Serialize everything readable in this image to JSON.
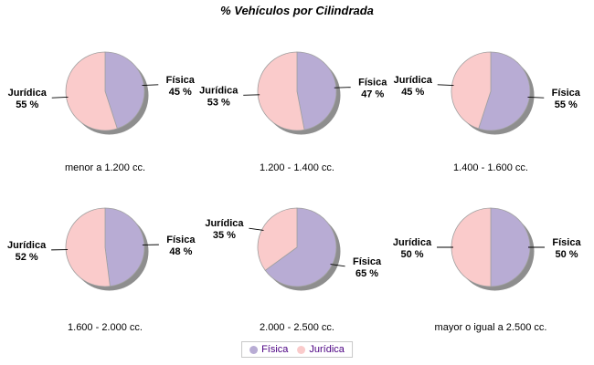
{
  "title": "% Vehículos por Cilindrada",
  "colors": {
    "background": "#FFFFFF",
    "shadow": "#8E8E8E",
    "outline": "#A0A0A0",
    "label_text": "#000000",
    "legend_text": "#4B0082",
    "legend_border": "#C8C8C8"
  },
  "chart_data": {
    "type": "pie",
    "title": "% Vehículos por Cilindrada",
    "legend_position": "bottom",
    "unit": "%",
    "series": [
      {
        "name": "Física",
        "color": "#B8ACD4"
      },
      {
        "name": "Jurídica",
        "color": "#FACBCB"
      }
    ],
    "pies": [
      {
        "category": "menor a 1.200 cc.",
        "values": [
          45,
          55
        ]
      },
      {
        "category": "1.200 - 1.400 cc.",
        "values": [
          47,
          53
        ]
      },
      {
        "category": "1.400 - 1.600 cc.",
        "values": [
          55,
          45
        ]
      },
      {
        "category": "1.600 - 2.000 cc.",
        "values": [
          48,
          52
        ]
      },
      {
        "category": "2.000 - 2.500 cc.",
        "values": [
          65,
          35
        ]
      },
      {
        "category": "mayor o igual a 2.500 cc.",
        "values": [
          50,
          50
        ]
      }
    ]
  }
}
